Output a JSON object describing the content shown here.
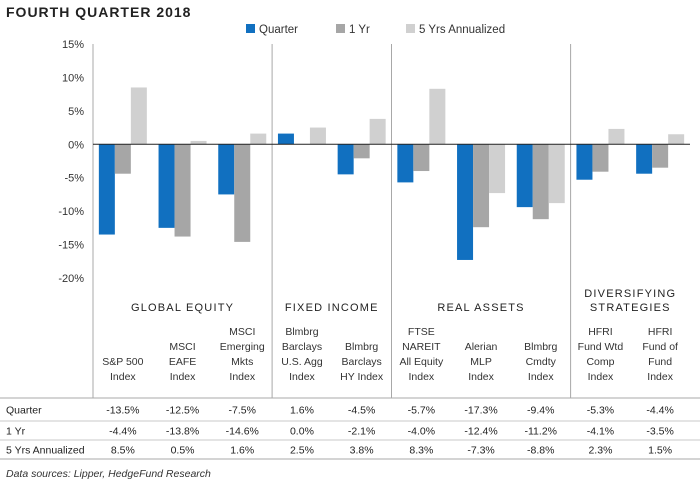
{
  "title": "FOURTH QUARTER 2018",
  "footnote": "Data sources: Lipper, HedgeFund Research",
  "colors": {
    "quarter": "#1170c0",
    "one_yr": "#a6a6a6",
    "five_yr": "#d0d0d0",
    "divider": "#a8a8a8",
    "axis": "#222222"
  },
  "chart_data": {
    "type": "bar",
    "title": "FOURTH QUARTER 2018",
    "ylim": [
      -20,
      15
    ],
    "yticks": [
      15,
      10,
      5,
      0,
      -5,
      -10,
      -15,
      -20
    ],
    "ytick_labels": [
      "15%",
      "10%",
      "5%",
      "0%",
      "-5%",
      "-10%",
      "-15%",
      "-20%"
    ],
    "legend_position": "top",
    "groups": [
      {
        "name": "GLOBAL EQUITY",
        "name_lines": [
          "GLOBAL EQUITY"
        ],
        "count": 3
      },
      {
        "name": "FIXED INCOME",
        "name_lines": [
          "FIXED INCOME"
        ],
        "count": 2
      },
      {
        "name": "REAL ASSETS",
        "name_lines": [
          "REAL ASSETS"
        ],
        "count": 3
      },
      {
        "name": "DIVERSIFYING STRATEGIES",
        "name_lines": [
          "DIVERSIFYING",
          "STRATEGIES"
        ],
        "count": 2
      }
    ],
    "categories": [
      {
        "name": "S&P 500 Index",
        "lines": [
          "S&P 500",
          "Index"
        ]
      },
      {
        "name": "MSCI EAFE Index",
        "lines": [
          "MSCI",
          "EAFE",
          "Index"
        ]
      },
      {
        "name": "MSCI Emerging Mkts Index",
        "lines": [
          "MSCI",
          "Emerging",
          "Mkts",
          "Index"
        ]
      },
      {
        "name": "Blmbrg Barclays U.S. Agg Index",
        "lines": [
          "Blmbrg",
          "Barclays",
          "U.S. Agg",
          "Index"
        ]
      },
      {
        "name": "Blmbrg Barclays HY Index",
        "lines": [
          "Blmbrg",
          "Barclays",
          "HY Index"
        ]
      },
      {
        "name": "FTSE NAREIT All Equity Index",
        "lines": [
          "FTSE",
          "NAREIT",
          "All Equity",
          "Index"
        ]
      },
      {
        "name": "Alerian MLP Index",
        "lines": [
          "Alerian",
          "MLP",
          "Index"
        ]
      },
      {
        "name": "Blmbrg Cmdty Index",
        "lines": [
          "Blmbrg",
          "Cmdty",
          "Index"
        ]
      },
      {
        "name": "HFRI Fund Wtd Comp Index",
        "lines": [
          "HFRI",
          "Fund Wtd",
          "Comp",
          "Index"
        ]
      },
      {
        "name": "HFRI Fund of Fund Index",
        "lines": [
          "HFRI",
          "Fund of",
          "Fund",
          "Index"
        ]
      }
    ],
    "series": [
      {
        "name": "Quarter",
        "color": "#1170c0",
        "values": [
          -13.5,
          -12.5,
          -7.5,
          1.6,
          -4.5,
          -5.7,
          -17.3,
          -9.4,
          -5.3,
          -4.4
        ],
        "labels": [
          "-13.5%",
          "-12.5%",
          "-7.5%",
          "1.6%",
          "-4.5%",
          "-5.7%",
          "-17.3%",
          "-9.4%",
          "-5.3%",
          "-4.4%"
        ]
      },
      {
        "name": "1 Yr",
        "color": "#a6a6a6",
        "values": [
          -4.4,
          -13.8,
          -14.6,
          0.0,
          -2.1,
          -4.0,
          -12.4,
          -11.2,
          -4.1,
          -3.5
        ],
        "labels": [
          "-4.4%",
          "-13.8%",
          "-14.6%",
          "0.0%",
          "-2.1%",
          "-4.0%",
          "-12.4%",
          "-11.2%",
          "-4.1%",
          "-3.5%"
        ]
      },
      {
        "name": "5 Yrs Annualized",
        "color": "#d0d0d0",
        "values": [
          8.5,
          0.5,
          1.6,
          2.5,
          3.8,
          8.3,
          -7.3,
          -8.8,
          2.3,
          1.5
        ],
        "labels": [
          "8.5%",
          "0.5%",
          "1.6%",
          "2.5%",
          "3.8%",
          "8.3%",
          "-7.3%",
          "-8.8%",
          "2.3%",
          "1.5%"
        ]
      }
    ]
  }
}
